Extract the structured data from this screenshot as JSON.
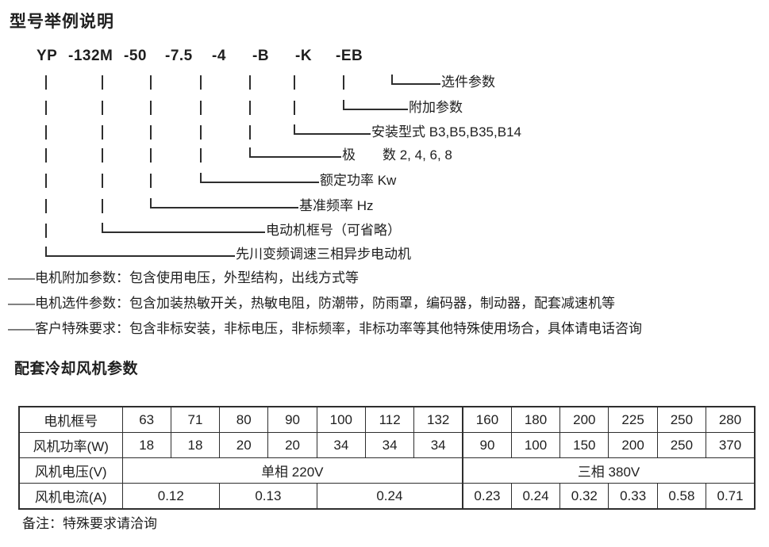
{
  "page": {
    "title": "型号举例说明",
    "section2_title": "配套冷却风机参数",
    "footnote": "备注：特殊要求请洽询"
  },
  "colors": {
    "ink": "#1f1f1f",
    "line": "#2e2e2e"
  },
  "model_code": {
    "segments": [
      "YP",
      "-132M",
      "-50",
      "-7.5",
      "-4",
      "-B",
      "-K",
      "-EB"
    ]
  },
  "ladder": {
    "labels": [
      "选件参数",
      "附加参数",
      "安装型式 B3,B5,B35,B14",
      "极　　数 2, 4, 6, 8",
      "额定功率 Kw",
      "基准频率 Hz",
      "电动机框号（可省略）",
      "先川变频调速三相异步电动机"
    ]
  },
  "notes": [
    "——电机附加参数：包含使用电压，外型结构，出线方式等",
    "——电机选件参数：包含加装热敏开关，热敏电阻，防潮带，防雨罩，编码器，制动器，配套减速机等",
    "——客户特殊要求：包含非标安装，非标电压，非标频率，非标功率等其他特殊使用场合，具体请电话咨询"
  ],
  "fan_table": {
    "row_headers": [
      "电机框号",
      "风机功率(W)",
      "风机电压(V)",
      "风机电流(A)"
    ],
    "frames": [
      "63",
      "71",
      "80",
      "90",
      "100",
      "112",
      "132",
      "160",
      "180",
      "200",
      "225",
      "250",
      "280"
    ],
    "power_w": [
      "18",
      "18",
      "20",
      "20",
      "34",
      "34",
      "34",
      "90",
      "100",
      "150",
      "200",
      "250",
      "370"
    ],
    "voltage_spans": [
      {
        "label": "单相 220V",
        "span": 7
      },
      {
        "label": "三相 380V",
        "span": 6
      }
    ],
    "current_spans": [
      {
        "label": "0.12",
        "span": 2
      },
      {
        "label": "0.13",
        "span": 2
      },
      {
        "label": "0.24",
        "span": 3
      },
      {
        "label": "0.23",
        "span": 1
      },
      {
        "label": "0.24",
        "span": 1
      },
      {
        "label": "0.32",
        "span": 1
      },
      {
        "label": "0.33",
        "span": 1
      },
      {
        "label": "0.58",
        "span": 1
      },
      {
        "label": "0.71",
        "span": 1
      }
    ]
  }
}
